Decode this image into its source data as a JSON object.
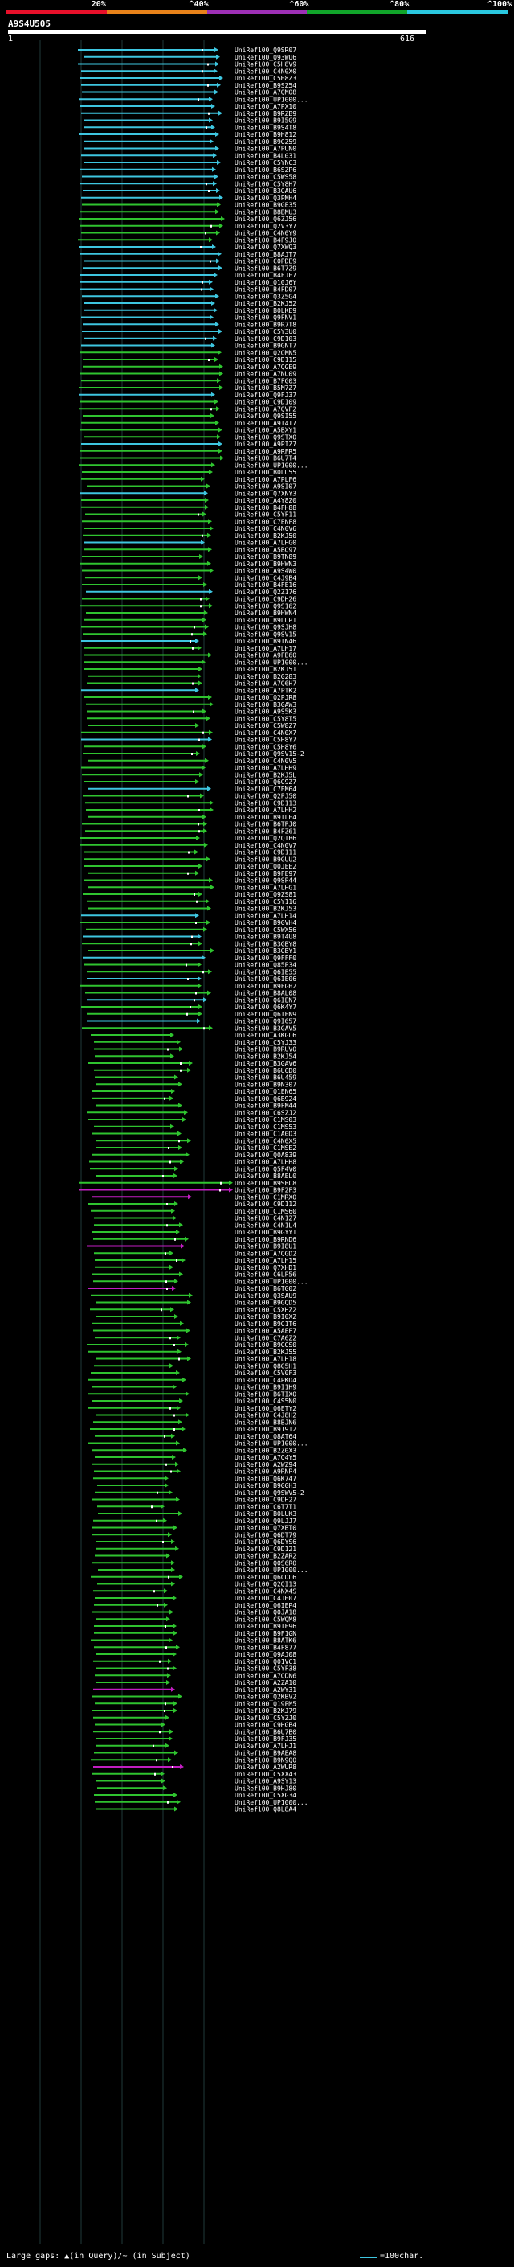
{
  "header": {
    "scale_labels": [
      "20%",
      "^40%",
      "^60%",
      "^80%",
      "^100%"
    ],
    "scale_colors": [
      "#e8102a",
      "#e8821a",
      "#9d2fb5",
      "#11a52a",
      "#2ac8e0"
    ],
    "query_id": "A9S4U505",
    "query_start": "1",
    "query_end": "616"
  },
  "colors": {
    "identity_100": "#3ec6e0",
    "identity_80": "#2fc42f",
    "identity_60": "#c21ec2",
    "gap_marker": "#ffffff",
    "query_bar": "#ffffff"
  },
  "hits": [
    "UniRef100_Q9SR07",
    "UniRef100_Q93WU6",
    "UniRef100_C5H8V9",
    "UniRef100_C4N0X0",
    "UniRef100_C5H8Z3",
    "UniRef100_B9SZ54",
    "UniRef100_A7QM08",
    "UniRef100_UP1000...",
    "UniRef100_A7PX10",
    "UniRef100_B9RZB9",
    "UniRef100_B9I5G9",
    "UniRef100_B9S4T8",
    "UniRef100_B9H812",
    "UniRef100_B9GZ59",
    "UniRef100_A7PUN0",
    "UniRef100_B4L031",
    "UniRef100_C5YNC3",
    "UniRef100_B6SZP6",
    "UniRef100_C5WS58",
    "UniRef100_C5Y8H7",
    "UniRef100_B3GAU6",
    "UniRef100_Q3PMH4",
    "UniRef100_B9GE35",
    "UniRef100_B8BMU3",
    "UniRef100_Q6ZJ56",
    "UniRef100_Q2V3Y7",
    "UniRef100_C4N0Y9",
    "UniRef100_B4F9J0",
    "UniRef100_Q7XWQ3",
    "UniRef100_B8AJT7",
    "UniRef100_C0PDE9",
    "UniRef100_B6T7Z9",
    "UniRef100_B4FJE7",
    "UniRef100_Q10J6Y",
    "UniRef100_B4FD07",
    "UniRef100_Q3Z5G4",
    "UniRef100_B2KJ52",
    "UniRef100_B0LKE9",
    "UniRef100_Q9FNV1",
    "UniRef100_B9R7T8",
    "UniRef100_C5Y3U0",
    "UniRef100_C9D103",
    "UniRef100_B9GNT7",
    "UniRef100_Q2QMN5",
    "UniRef100_C9D115",
    "UniRef100_A7QGE9",
    "UniRef100_A7NU09",
    "UniRef100_B7FG03",
    "UniRef100_B5M7Z7",
    "UniRef100_Q9FJ37",
    "UniRef100_C9D109",
    "UniRef100_A7QVF2",
    "UniRef100_Q9SI55",
    "UniRef100_A9T4I7",
    "UniRef100_A5BXY1",
    "UniRef100_Q9STX0",
    "UniRef100_A9PIZ7",
    "UniRef100_A9RFR5",
    "UniRef100_B6U7T4",
    "UniRef100_UP1000...",
    "UniRef100_B0LU55",
    "UniRef100_A7PLF6",
    "UniRef100_A9SI07",
    "UniRef100_Q7XNY3",
    "UniRef100_A4Y8Z0",
    "UniRef100_B4FH88",
    "UniRef100_C5YF11",
    "UniRef100_C7ENF8",
    "UniRef100_C4N0V6",
    "UniRef100_B2KJ50",
    "UniRef100_A7LHG0",
    "UniRef100_A5BQ97",
    "UniRef100_B9TN89",
    "UniRef100_B9HWN3",
    "UniRef100_A9S4W0",
    "UniRef100_C4J9B4",
    "UniRef100_B4FE16",
    "UniRef100_Q2Z176",
    "UniRef100_C9DH26",
    "UniRef100_Q9S162",
    "UniRef100_B9HWN4",
    "UniRef100_B9LUP1",
    "UniRef100_Q9SJH8",
    "UniRef100_Q9SV15",
    "UniRef100_B9IN46",
    "UniRef100_A7LH17",
    "UniRef100_A9FB60",
    "UniRef100_UP1000...",
    "UniRef100_B2KJ51",
    "UniRef100_B2G283",
    "UniRef100_A7Q6H7",
    "UniRef100_A7PTK2",
    "UniRef100_Q2PJR8",
    "UniRef100_B3GAW3",
    "UniRef100_A9S5K3",
    "UniRef100_C5Y8T5",
    "UniRef100_C5W8Z7",
    "UniRef100_C4N0X7",
    "UniRef100_C5H8Y7",
    "UniRef100_C5H8Y6",
    "UniRef100_Q9SV15-2",
    "UniRef100_C4N0V5",
    "UniRef100_A7LHH9",
    "UniRef100_B2KJ5L",
    "UniRef100_Q6G9Z7",
    "UniRef100_C7EM64",
    "UniRef100_Q2PJ50",
    "UniRef100_C9D113",
    "UniRef100_A7LHH2",
    "UniRef100_B9ILE4",
    "UniRef100_B6TPJ0",
    "UniRef100_B4FZ61",
    "UniRef100_Q2QIB6",
    "UniRef100_C4N0V7",
    "UniRef100_C9D111",
    "UniRef100_B9GUU2",
    "UniRef100_Q0JEE2",
    "UniRef100_B9FE97",
    "UniRef100_Q9SP44",
    "UniRef100_A7LHG1",
    "UniRef100_Q9ZS81",
    "UniRef100_C5Y116",
    "UniRef100_B2KJ53",
    "UniRef100_A7LH14",
    "UniRef100_B9GVH4",
    "UniRef100_C5WX56",
    "UniRef100_B9T4U8",
    "UniRef100_B3GBY8",
    "UniRef100_B3GBY1",
    "UniRef100_Q9FFF0",
    "UniRef100_Q85P34",
    "UniRef100_Q6IE55",
    "UniRef100_Q6IE06",
    "UniRef100_B9FGH2",
    "UniRef100_B8AL08",
    "UniRef100_Q6IEN7",
    "UniRef100_Q6K4Y7",
    "UniRef100_Q6IEN9",
    "UniRef100_Q9I657",
    "UniRef100_B3GAV5",
    "UniRef100_A3KGL6",
    "UniRef100_C5YJ33",
    "UniRef100_B9RUV0",
    "UniRef100_B2KJ54",
    "UniRef100_B3GAV6",
    "UniRef100_B6U6D0",
    "UniRef100_B6U459",
    "UniRef100_B9N307",
    "UniRef100_Q1EN65",
    "UniRef100_Q6B924",
    "UniRef100_B9FM44",
    "UniRef100_C6SZJ2",
    "UniRef100_C1MS03",
    "UniRef100_C1MS53",
    "UniRef100_C1A0D3",
    "UniRef100_C4N0X5",
    "UniRef100_C1MSE2",
    "UniRef100_Q0A839",
    "UniRef100_A7LHH8",
    "UniRef100_Q5F4V0",
    "UniRef100_B8AEL0",
    "UniRef100_B9SBC8",
    "UniRef100_B9F2F3",
    "UniRef100_C1MRX0",
    "UniRef100_C9D112",
    "UniRef100_C1MS60",
    "UniRef100_C4N127",
    "UniRef100_C4N1L4",
    "UniRef100_B9GYY1",
    "UniRef100_B9RND6",
    "UniRef100_B9I8U1",
    "UniRef100_A7QGD2",
    "UniRef100_A7LH15",
    "UniRef100_Q7XHD1",
    "UniRef100_C6LP56",
    "UniRef100_UP1000...",
    "UniRef100_B6TG02",
    "UniRef100_Q3SAU9",
    "UniRef100_B9GQD5",
    "UniRef100_C5XHZ2",
    "UniRef100_B9I0X2",
    "UniRef100_B9G1T6",
    "UniRef100_A5AEF7",
    "UniRef100_C7A6Z2",
    "UniRef100_B9GGS0",
    "UniRef100_B2KJ55",
    "UniRef100_A7LH18",
    "UniRef100_Q8G5H1",
    "UniRef100_C5V0F3",
    "UniRef100_C4PKD4",
    "UniRef100_B9I1H9",
    "UniRef100_B6TIX0",
    "UniRef100_C4S5N0",
    "UniRef100_Q6ETY2",
    "UniRef100_C4J8H2",
    "UniRef100_B8BJN6",
    "UniRef100_B91912",
    "UniRef100_Q8AT64",
    "UniRef100_UP1000...",
    "UniRef100_B2Z0X3",
    "UniRef100_A7Q4Y5",
    "UniRef100_A2WZ94",
    "UniRef100_A9RNP4",
    "UniRef100_Q6K747",
    "UniRef100_B9GGH3",
    "UniRef100_Q9SWV5-2",
    "UniRef100_C9DH27",
    "UniRef100_C6T7T1",
    "UniRef100_B0LUK3",
    "UniRef100_Q9LJJ7",
    "UniRef100_Q7XBT0",
    "UniRef100_Q6DT79",
    "UniRef100_Q6DYS6",
    "UniRef100_C9D121",
    "UniRef100_B2ZAR2",
    "UniRef100_Q0S6R0",
    "UniRef100_UP1000...",
    "UniRef100_Q6CDL6",
    "UniRef100_Q2QI13",
    "UniRef100_C4NX4S",
    "UniRef100_C4JH07",
    "UniRef100_Q6IEP4",
    "UniRef100_Q0JA18",
    "UniRef100_C5WQM8",
    "UniRef100_B9TE96",
    "UniRef100_B9F1GN",
    "UniRef100_B8ATK6",
    "UniRef100_B4F877",
    "UniRef100_Q9AJ08",
    "UniRef100_Q01VC1",
    "UniRef100_C5YF38",
    "UniRef100_A7QDN6",
    "UniRef100_A2ZA10",
    "UniRef100_A2WY31",
    "UniRef100_Q2KBV2",
    "UniRef100_Q19PM5",
    "UniRef100_B2KJ79",
    "UniRef100_C5YZJ0",
    "UniRef100_C9HGB4",
    "UniRef100_B6U7B0",
    "UniRef100_B9FJ35",
    "UniRef100_A7LHJ1",
    "UniRef100_B9AEA8",
    "UniRef100_B9N9Q0",
    "UniRef100_A2WUR8",
    "UniRef100_C5XX43",
    "UniRef100_A9SY13",
    "UniRef100_B9HJ80",
    "UniRef100_C5XG34",
    "UniRef100_UP1000...",
    "UniRef100_Q8L8A4"
  ],
  "footer": {
    "legend_text": "Large gaps: ▲(in Query)/~ (in Subject)",
    "scale_note": "=100char."
  }
}
